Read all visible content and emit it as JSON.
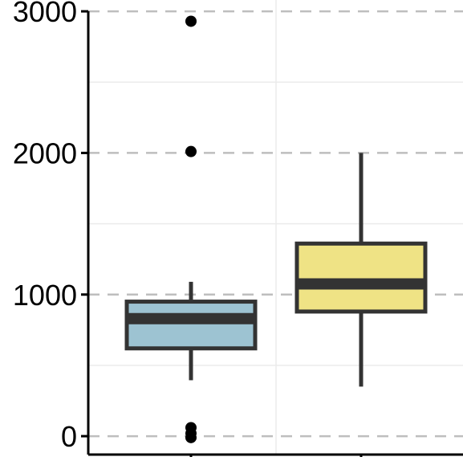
{
  "chart_data": {
    "type": "boxplot",
    "title": "",
    "xlabel": "",
    "ylabel": "",
    "ylim": [
      -130,
      3080
    ],
    "y_ticks": [
      {
        "value": 0,
        "label": "0"
      },
      {
        "value": 1000,
        "label": "1000"
      },
      {
        "value": 2000,
        "label": "2000"
      },
      {
        "value": 3000,
        "label": "3000"
      }
    ],
    "grid": {
      "major_dashed": true,
      "minor_solid": true,
      "minor_values": [
        500,
        1500,
        2500
      ]
    },
    "groups": [
      {
        "color": "#9DC3D2",
        "whisker_low": 395,
        "q1": 620,
        "median": 830,
        "q3": 950,
        "whisker_high": 1090,
        "outliers": [
          2930,
          2010,
          60,
          20,
          -10
        ]
      },
      {
        "color": "#EFE385",
        "whisker_low": 350,
        "q1": 880,
        "median": 1075,
        "q3": 1360,
        "whisker_high": 2000,
        "outliers": []
      }
    ],
    "colors": {
      "outline": "#333333",
      "grid": "#BEBEBE",
      "minor_grid": "#EBEBEB",
      "axis": "#000000"
    }
  }
}
